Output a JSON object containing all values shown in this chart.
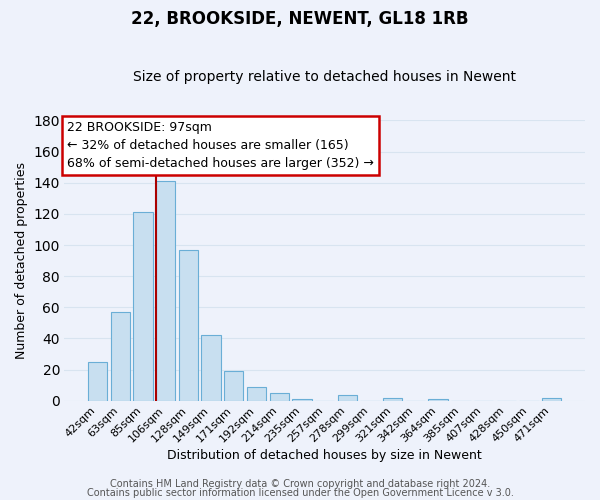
{
  "title": "22, BROOKSIDE, NEWENT, GL18 1RB",
  "subtitle": "Size of property relative to detached houses in Newent",
  "xlabel": "Distribution of detached houses by size in Newent",
  "ylabel": "Number of detached properties",
  "categories": [
    "42sqm",
    "63sqm",
    "85sqm",
    "106sqm",
    "128sqm",
    "149sqm",
    "171sqm",
    "192sqm",
    "214sqm",
    "235sqm",
    "257sqm",
    "278sqm",
    "299sqm",
    "321sqm",
    "342sqm",
    "364sqm",
    "385sqm",
    "407sqm",
    "428sqm",
    "450sqm",
    "471sqm"
  ],
  "values": [
    25,
    57,
    121,
    141,
    97,
    42,
    19,
    9,
    5,
    1,
    0,
    4,
    0,
    2,
    0,
    1,
    0,
    0,
    0,
    0,
    2
  ],
  "bar_color": "#c8dff0",
  "bar_edge_color": "#6aaed6",
  "marker_bin_index": 3,
  "marker_line_color": "#aa0000",
  "annotation_text_line1": "22 BROOKSIDE: 97sqm",
  "annotation_text_line2": "← 32% of detached houses are smaller (165)",
  "annotation_text_line3": "68% of semi-detached houses are larger (352) →",
  "annotation_box_facecolor": "#ffffff",
  "annotation_box_edgecolor": "#cc0000",
  "ylim": [
    0,
    180
  ],
  "yticks": [
    0,
    20,
    40,
    60,
    80,
    100,
    120,
    140,
    160,
    180
  ],
  "footer_line1": "Contains HM Land Registry data © Crown copyright and database right 2024.",
  "footer_line2": "Contains public sector information licensed under the Open Government Licence v 3.0.",
  "background_color": "#eef2fb",
  "grid_color": "#d8e4f0",
  "title_fontsize": 12,
  "subtitle_fontsize": 10,
  "axis_label_fontsize": 9,
  "tick_fontsize": 8,
  "footer_fontsize": 7,
  "annotation_fontsize": 9
}
